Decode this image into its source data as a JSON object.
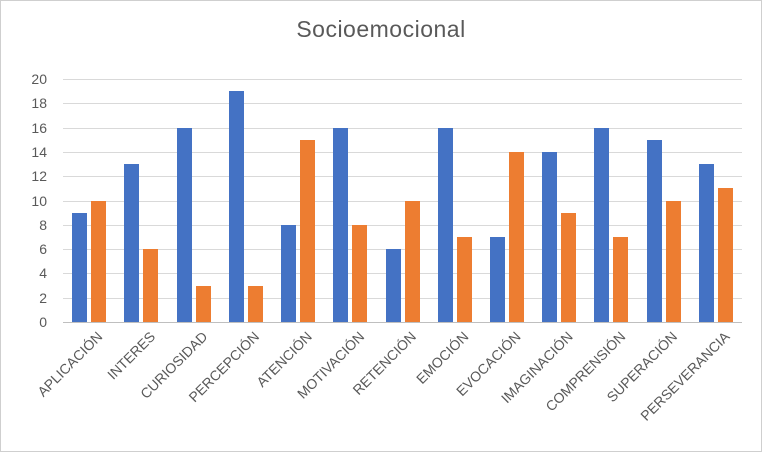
{
  "chart_data": {
    "type": "bar",
    "title": "Socioemocional",
    "categories": [
      "APLICACIÓN",
      "INTERES",
      "CURIOSIDAD",
      "PERCEPCIÓN",
      "ATENCIÓN",
      "MOTIVACIÓN",
      "RETENCIÓN",
      "EMOCIÓN",
      "EVOCACIÓN",
      "IMAGINACIÓN",
      "COMPRENSIÓN",
      "SUPERACIÓN",
      "PERSEVERANCIA"
    ],
    "series": [
      {
        "key": "blue",
        "color": "#4472C4",
        "values": [
          9,
          13,
          16,
          19,
          8,
          16,
          6,
          16,
          7,
          14,
          16,
          15,
          13
        ]
      },
      {
        "key": "orange",
        "color": "#ED7D31",
        "values": [
          10,
          6,
          3,
          3,
          15,
          8,
          10,
          7,
          14,
          9,
          7,
          10,
          11
        ]
      }
    ],
    "y_axis": {
      "min": 0,
      "max": 20,
      "step": 2,
      "tick_labels": [
        "0",
        "2",
        "4",
        "6",
        "8",
        "10",
        "12",
        "14",
        "16",
        "18",
        "20"
      ]
    },
    "x_axis_label_rotation_deg": 45,
    "grid": true,
    "legend": "none",
    "colors": {
      "gridline": "#D9D9D9",
      "axis_line": "#BFBFBF",
      "text": "#595959",
      "background": "#FFFFFF",
      "frame_border": "#CFCFCF"
    }
  }
}
